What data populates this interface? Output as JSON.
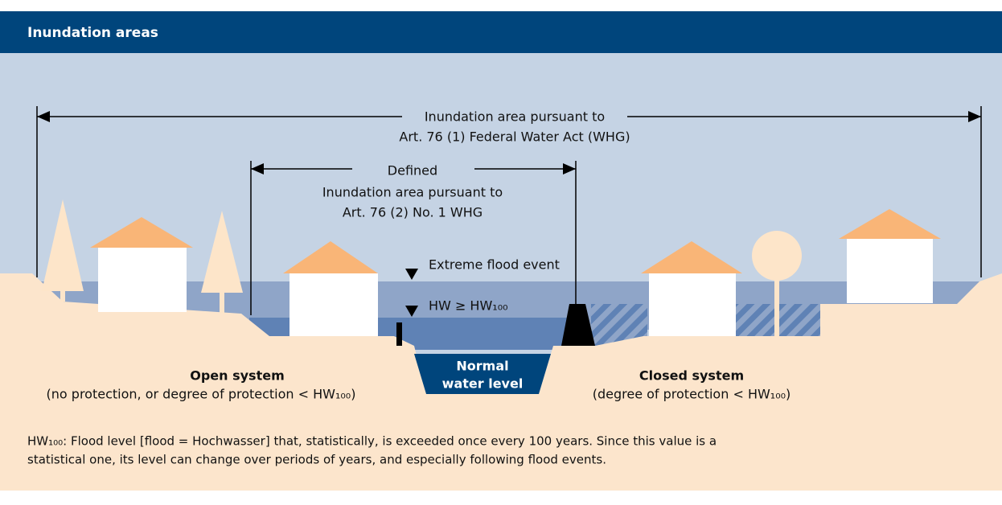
{
  "header": {
    "title": "Inundation areas"
  },
  "labels": {
    "wide_area": [
      "Inundation area pursuant to",
      "Art. 76 (1) Federal Water Act (WHG)"
    ],
    "defined_area": [
      "Defined",
      "Inundation area pursuant to",
      "Art. 76 (2) No. 1 WHG"
    ],
    "extreme_flood": "Extreme flood event",
    "hw_level": "HW ≥ HW₁₀₀",
    "normal_water": [
      "Normal",
      "water level"
    ],
    "open_system": {
      "title": "Open system",
      "note": "(no protection, or degree of protection < HW₁₀₀)"
    },
    "closed_system": {
      "title": "Closed system",
      "note": "(degree of protection < HW₁₀₀)"
    }
  },
  "footnote": [
    "HW₁₀₀: Flood level [flood = Hochwasser] that, statistically, is exceeded once every 100 years. Since this value is a",
    "statistical one, its level can change over periods of years, and especially following flood events."
  ]
}
